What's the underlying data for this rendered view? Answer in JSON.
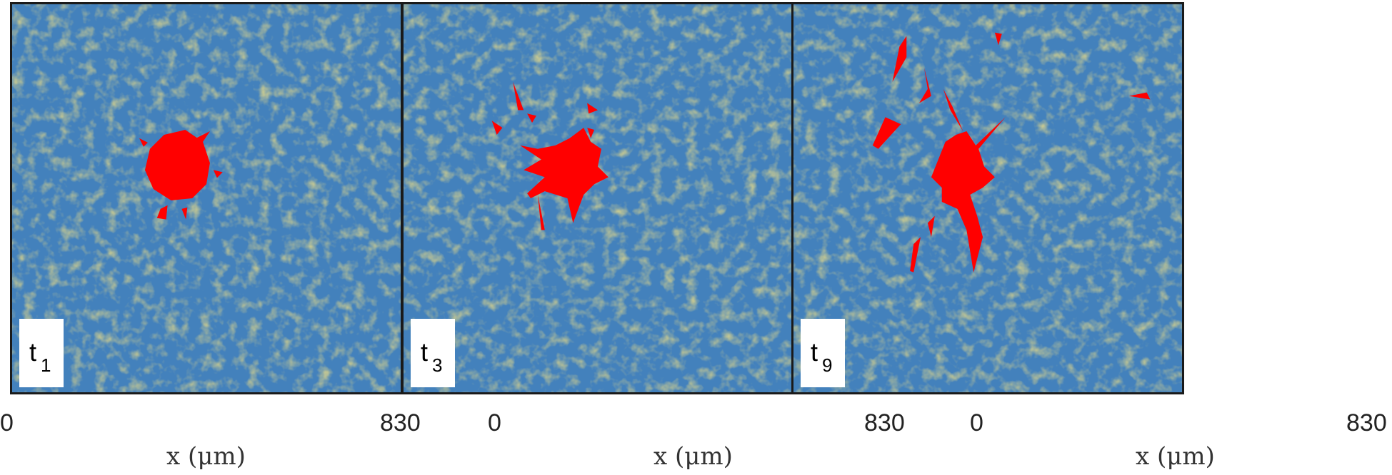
{
  "panels": [
    {
      "time_label": "t",
      "time_sub": "1",
      "x_min": "0",
      "x_max": "830",
      "x_axis_label": "x (μm)"
    },
    {
      "time_label": "t",
      "time_sub": "3",
      "x_min": "0",
      "x_max": "830",
      "x_axis_label": "x (μm)"
    },
    {
      "time_label": "t",
      "time_sub": "9",
      "x_min": "0",
      "x_max": "830",
      "x_axis_label": "x (μm)"
    }
  ],
  "colors": {
    "background_field": "#3c72c6",
    "fiber_high": "#e8c23a",
    "fiber_mid": "#56b0a0",
    "cell": "#ff0000",
    "frame": "#1a1a1a"
  }
}
